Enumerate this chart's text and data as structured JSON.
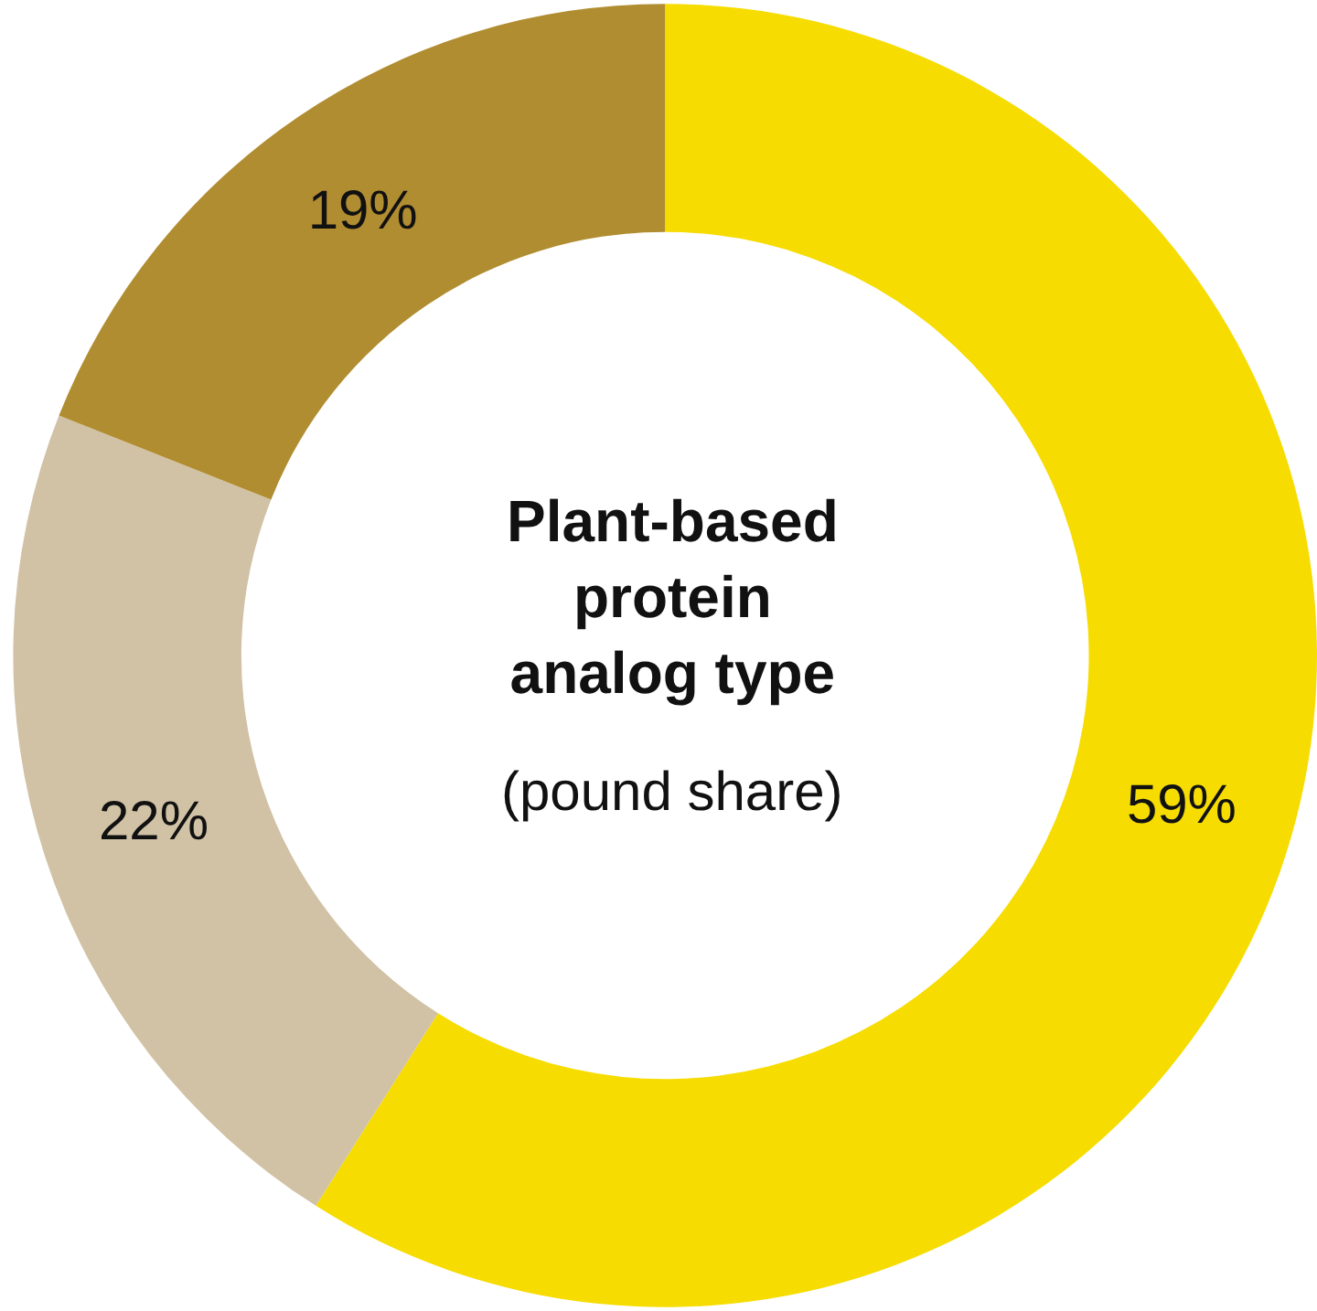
{
  "chart_data": {
    "type": "donut",
    "title": "Plant-based protein analog type",
    "subtitle": "(pound share)",
    "categories": [
      null,
      null,
      null
    ],
    "values": [
      59,
      22,
      19
    ],
    "colors": [
      "#f6dc00",
      "#d1c2a6",
      "#b18d31"
    ],
    "value_labels": [
      "59%",
      "22%",
      "19%"
    ],
    "legend": false
  }
}
